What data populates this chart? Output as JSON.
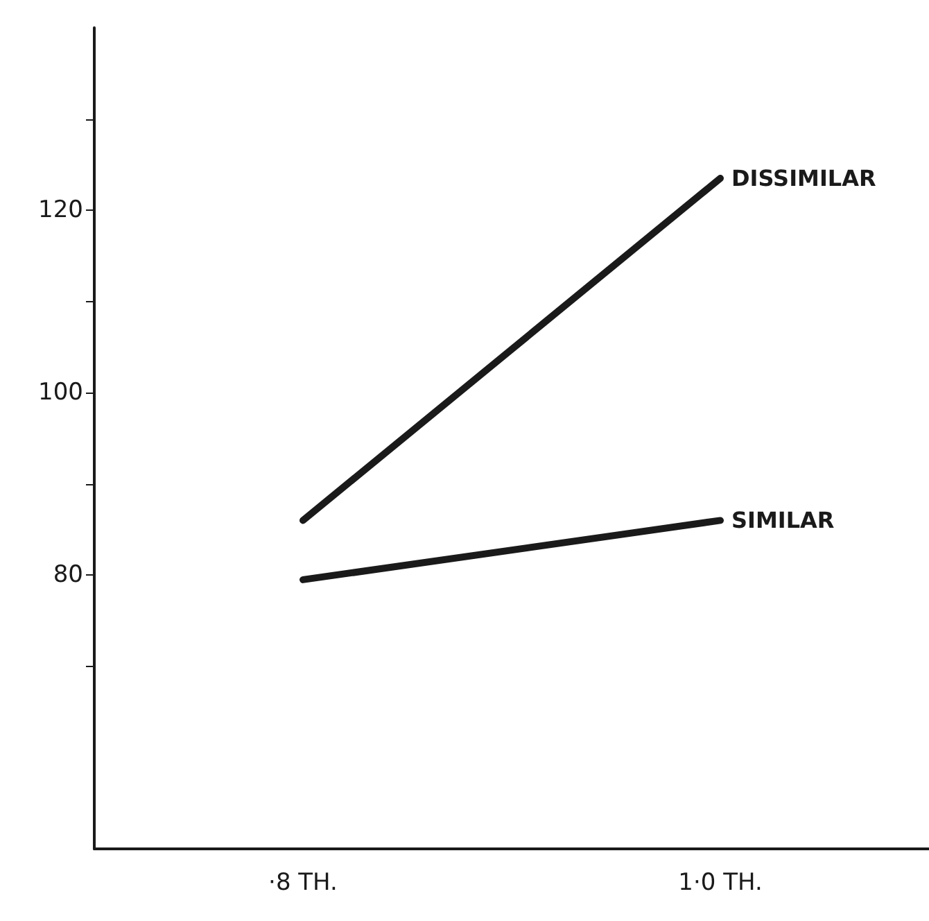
{
  "chart_data": {
    "type": "line",
    "categories": [
      "·8 TH.",
      "1·0 TH."
    ],
    "series": [
      {
        "name": "DISSIMILAR",
        "color": "#1a1a1a",
        "values": [
          86,
          123.5
        ]
      },
      {
        "name": "SIMILAR",
        "color": "#1a1a1a",
        "values": [
          79.5,
          86
        ]
      }
    ],
    "ylim": [
      50,
      140
    ],
    "yticks": [
      {
        "value": 70,
        "label": null
      },
      80,
      {
        "value": 90,
        "label": null
      },
      100,
      {
        "value": 110,
        "label": null
      },
      120,
      {
        "value": 130,
        "label": null
      }
    ],
    "grid": false,
    "legend": false,
    "marker": "none",
    "line_style": "solid"
  }
}
